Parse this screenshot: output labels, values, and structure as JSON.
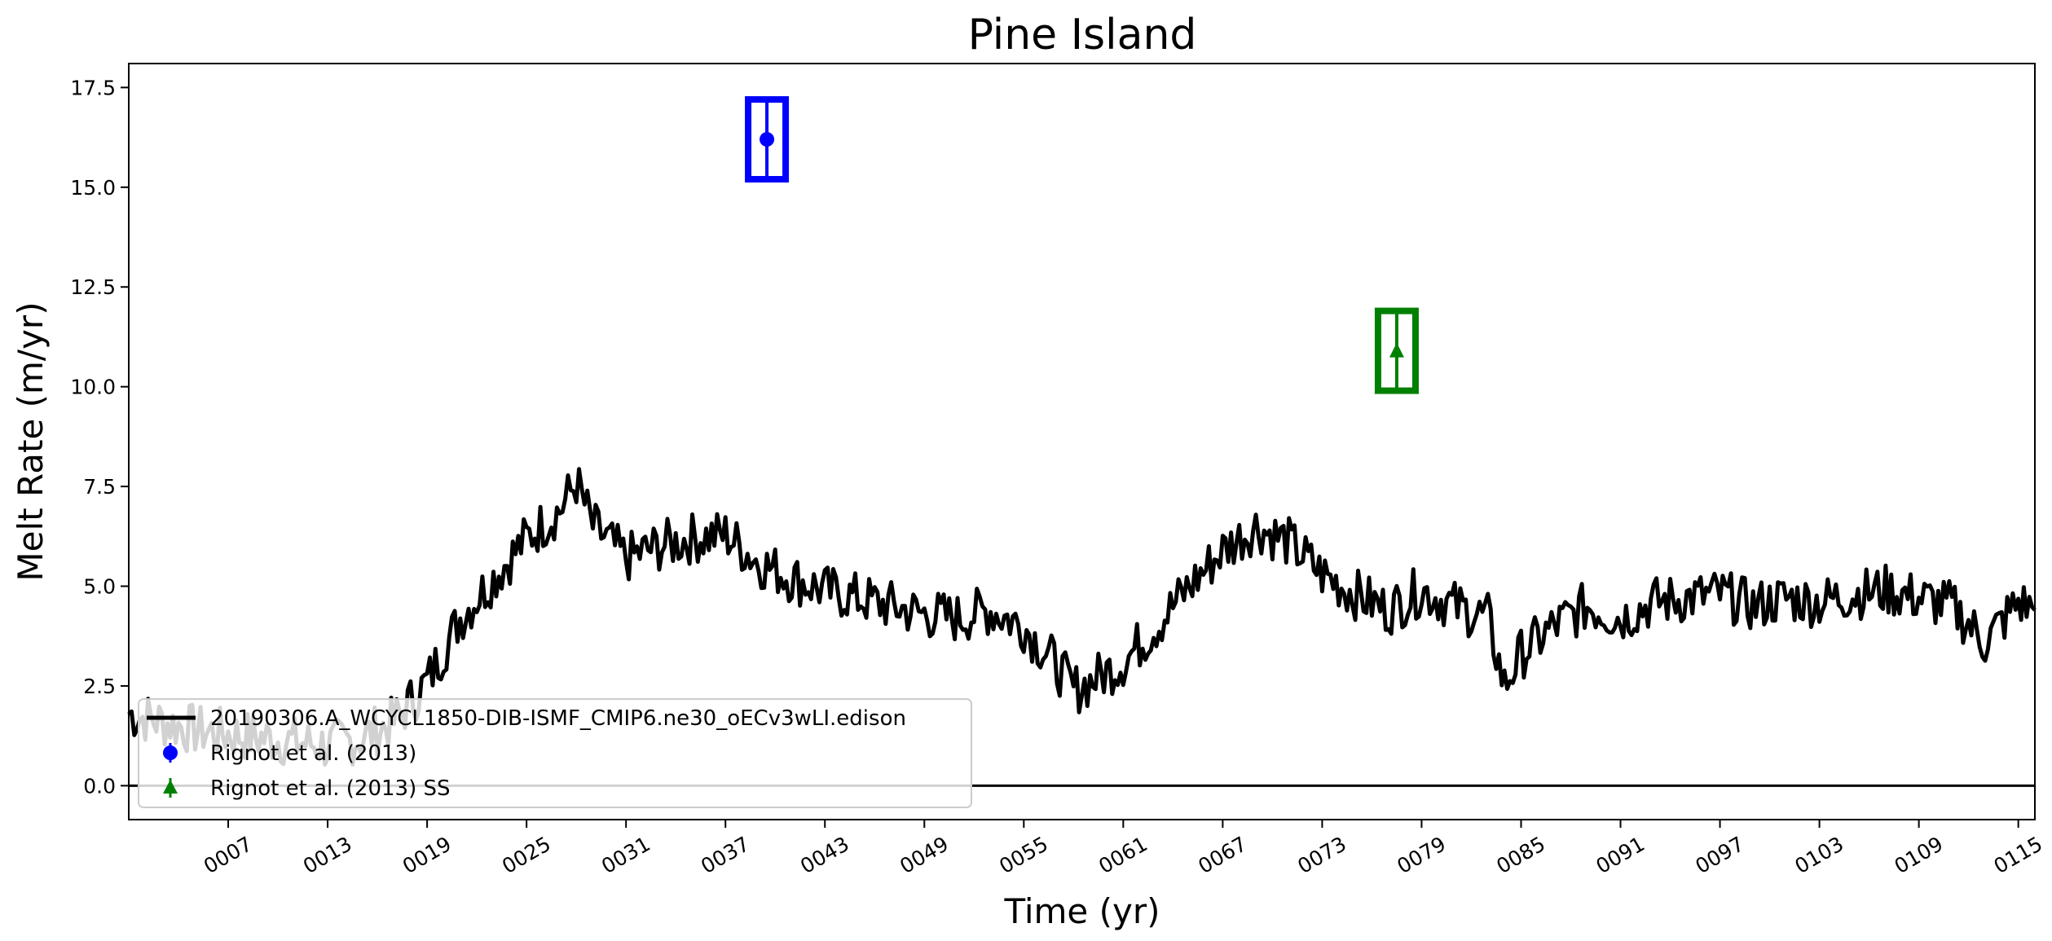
{
  "chart_data": {
    "type": "line",
    "title": "Pine Island",
    "xlabel": "Time (yr)",
    "ylabel": "Melt Rate (m/yr)",
    "xlim": [
      1,
      116
    ],
    "ylim": [
      -0.85,
      18.1
    ],
    "x_ticks": [
      "0007",
      "0013",
      "0019",
      "0025",
      "0031",
      "0037",
      "0043",
      "0049",
      "0055",
      "0061",
      "0067",
      "0073",
      "0079",
      "0085",
      "0091",
      "0097",
      "0103",
      "0109",
      "0115"
    ],
    "x_tick_values": [
      7,
      13,
      19,
      25,
      31,
      37,
      43,
      49,
      55,
      61,
      67,
      73,
      79,
      85,
      91,
      97,
      103,
      109,
      115
    ],
    "y_ticks": [
      "0.0",
      "2.5",
      "5.0",
      "7.5",
      "10.0",
      "12.5",
      "15.0",
      "17.5"
    ],
    "y_tick_values": [
      0,
      2.5,
      5,
      7.5,
      10,
      12.5,
      15,
      17.5
    ],
    "grid": false,
    "zero_line": 0,
    "legend_position": "lower-left",
    "legend": [
      "20190306.A_WCYCL1850-DIB-ISMF_CMIP6.ne30_oECv3wLI.edison",
      "Rignot et al. (2013)",
      "Rignot et al. (2013) SS"
    ],
    "series": [
      {
        "name": "20190306.A_WCYCL1850-DIB-ISMF_CMIP6.ne30_oECv3wLI.edison",
        "color": "#000000",
        "style": "line",
        "x": [
          1,
          3,
          5,
          7,
          9,
          11,
          13,
          15,
          17,
          19,
          21,
          23,
          25,
          27,
          28,
          29,
          31,
          33,
          35,
          37,
          39,
          41,
          43,
          45,
          47,
          49,
          51,
          53,
          55,
          57,
          58,
          59,
          61,
          63,
          65,
          67,
          69,
          71,
          73,
          75,
          77,
          79,
          81,
          83,
          84,
          85,
          87,
          89,
          91,
          93,
          95,
          97,
          99,
          101,
          103,
          105,
          107,
          109,
          111,
          113,
          115,
          116
        ],
        "y": [
          1.8,
          1.6,
          1.4,
          1.3,
          1.2,
          1.1,
          1.0,
          1.2,
          1.6,
          2.6,
          4.2,
          5.2,
          6.2,
          6.9,
          7.6,
          6.5,
          5.7,
          6.0,
          6.2,
          6.3,
          5.6,
          5.2,
          4.9,
          4.7,
          4.5,
          4.3,
          4.2,
          4.4,
          4.0,
          3.0,
          2.4,
          2.6,
          3.1,
          4.0,
          5.0,
          5.9,
          6.5,
          6.1,
          5.3,
          4.8,
          4.4,
          4.9,
          4.5,
          4.2,
          2.5,
          3.3,
          4.0,
          4.5,
          4.2,
          4.6,
          4.7,
          4.8,
          4.5,
          4.7,
          4.6,
          4.8,
          4.9,
          4.7,
          4.5,
          3.6,
          4.6,
          4.4
        ]
      },
      {
        "name": "Rignot et al. (2013)",
        "color": "#0000ff",
        "style": "errorbar",
        "marker": "circle",
        "x": [
          39.5
        ],
        "y": [
          16.2
        ],
        "error": 1.0
      },
      {
        "name": "Rignot et al. (2013) SS",
        "color": "#008000",
        "style": "errorbar",
        "marker": "triangle",
        "x": [
          77.5
        ],
        "y": [
          10.9
        ],
        "error": 1.0
      }
    ]
  }
}
